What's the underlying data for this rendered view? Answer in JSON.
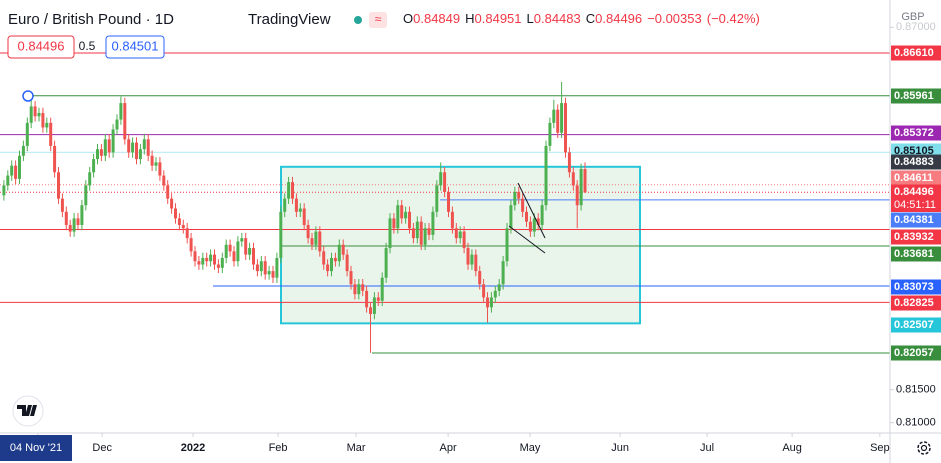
{
  "chart_data": {
    "type": "candlestick",
    "title": "Euro / British Pound · 1D",
    "source": "TradingView",
    "currency": "GBP",
    "ohlc_header": [
      {
        "label": "O",
        "value": 0.84849
      },
      {
        "label": "H",
        "value": 0.84951
      },
      {
        "label": "L",
        "value": 0.84483
      },
      {
        "label": "C",
        "value": 0.84496
      }
    ],
    "change": "−0.00353",
    "change_percent": "(−0.42%)",
    "quote": {
      "sell": 0.84496,
      "spread": 0.5,
      "buy": 0.84501
    },
    "countdown": "04:51:11",
    "up_color": "#4caf50",
    "down_color": "#ef5350",
    "xlim": [
      -1,
      227.2
    ],
    "xticks": [
      {
        "value": 8.7,
        "label": "04 Nov '21"
      },
      {
        "value": 25.2,
        "label": "Dec"
      },
      {
        "value": 48.5,
        "label": "2022"
      },
      {
        "value": 70.3,
        "label": "Feb"
      },
      {
        "value": 90.3,
        "label": "Mar"
      },
      {
        "value": 113.9,
        "label": "Apr"
      },
      {
        "value": 134.9,
        "label": "May"
      },
      {
        "value": 158,
        "label": "Jun"
      },
      {
        "value": 180.3,
        "label": "Jul"
      },
      {
        "value": 202.1,
        "label": "Aug"
      },
      {
        "value": 224.6,
        "label": "Sep"
      }
    ],
    "ylim": [
      0.80843,
      0.87293
    ],
    "yticks": [
      {
        "value": 0.87,
        "label": "0.87000"
      },
      {
        "value": 0.815,
        "label": "0.81500"
      },
      {
        "value": 0.81,
        "label": "0.81000"
      }
    ],
    "levels": [
      {
        "value": 0.8661,
        "label": "0.86610",
        "color": "#f23645"
      },
      {
        "value": 0.85961,
        "label": "0.85961",
        "color": "#388e3c"
      },
      {
        "value": 0.85372,
        "label": "0.85372",
        "color": "#9c27b0"
      },
      {
        "value": 0.85105,
        "label": "0.85105",
        "color": "#80deea"
      },
      {
        "value": 0.84883,
        "label": "0.84883",
        "color": "#363a45"
      },
      {
        "value": 0.84611,
        "label": "0.84611",
        "color": "#f77c80"
      },
      {
        "value": 0.84496,
        "label": "0.84496",
        "color": "#f23645"
      },
      {
        "value": 0.84381,
        "label": "0.84381",
        "color": "#4a7df7"
      },
      {
        "value": 0.83932,
        "label": "0.83932",
        "color": "#f23645"
      },
      {
        "value": 0.83681,
        "label": "0.83681",
        "color": "#388e3c"
      },
      {
        "value": 0.83073,
        "label": "0.83073",
        "color": "#2962ff"
      },
      {
        "value": 0.82825,
        "label": "0.82825",
        "color": "#f23645"
      },
      {
        "value": 0.82507,
        "label": "0.82507",
        "color": "#26c6da"
      },
      {
        "value": 0.82057,
        "label": "0.82057",
        "color": "#388e3c"
      }
    ],
    "ohlc": [
      [
        0.8445,
        0.8468,
        0.8437,
        0.846
      ],
      [
        0.846,
        0.8483,
        0.8452,
        0.8475
      ],
      [
        0.8475,
        0.8498,
        0.8467,
        0.849
      ],
      [
        0.849,
        0.8498,
        0.8462,
        0.847
      ],
      [
        0.847,
        0.8513,
        0.8462,
        0.8505
      ],
      [
        0.8505,
        0.8528,
        0.8497,
        0.852
      ],
      [
        0.852,
        0.8563,
        0.8512,
        0.8555
      ],
      [
        0.8555,
        0.8595,
        0.8547,
        0.858
      ],
      [
        0.858,
        0.8588,
        0.8557,
        0.8565
      ],
      [
        0.8565,
        0.8578,
        0.8557,
        0.857
      ],
      [
        0.857,
        0.8578,
        0.854,
        0.8548
      ],
      [
        0.8548,
        0.8563,
        0.854,
        0.8555
      ],
      [
        0.8555,
        0.8563,
        0.8512,
        0.852
      ],
      [
        0.852,
        0.8528,
        0.8472,
        0.848
      ],
      [
        0.848,
        0.8488,
        0.8432,
        0.844
      ],
      [
        0.844,
        0.8448,
        0.8412,
        0.842
      ],
      [
        0.842,
        0.8428,
        0.8392,
        0.84
      ],
      [
        0.84,
        0.8408,
        0.8382,
        0.839
      ],
      [
        0.839,
        0.8418,
        0.8382,
        0.841
      ],
      [
        0.841,
        0.8418,
        0.8392,
        0.84
      ],
      [
        0.84,
        0.8438,
        0.8392,
        0.843
      ],
      [
        0.843,
        0.8468,
        0.8422,
        0.846
      ],
      [
        0.846,
        0.8488,
        0.8452,
        0.848
      ],
      [
        0.848,
        0.8508,
        0.8472,
        0.85
      ],
      [
        0.85,
        0.8523,
        0.8492,
        0.8515
      ],
      [
        0.8515,
        0.8523,
        0.8497,
        0.8505
      ],
      [
        0.8505,
        0.8538,
        0.8497,
        0.853
      ],
      [
        0.853,
        0.8538,
        0.8502,
        0.851
      ],
      [
        0.851,
        0.8553,
        0.8502,
        0.8545
      ],
      [
        0.8545,
        0.8568,
        0.8537,
        0.856
      ],
      [
        0.856,
        0.8595,
        0.8552,
        0.8585
      ],
      [
        0.8585,
        0.8593,
        0.8522,
        0.853
      ],
      [
        0.853,
        0.8538,
        0.8502,
        0.851
      ],
      [
        0.851,
        0.8533,
        0.8502,
        0.8525
      ],
      [
        0.8525,
        0.8533,
        0.8492,
        0.85
      ],
      [
        0.85,
        0.8523,
        0.8492,
        0.8515
      ],
      [
        0.8515,
        0.8538,
        0.8507,
        0.853
      ],
      [
        0.853,
        0.8538,
        0.8497,
        0.8505
      ],
      [
        0.8505,
        0.8513,
        0.8482,
        0.849
      ],
      [
        0.849,
        0.8503,
        0.8482,
        0.8495
      ],
      [
        0.8495,
        0.8503,
        0.8467,
        0.8475
      ],
      [
        0.8475,
        0.8483,
        0.8452,
        0.846
      ],
      [
        0.846,
        0.8468,
        0.8432,
        0.844
      ],
      [
        0.844,
        0.8448,
        0.8417,
        0.8425
      ],
      [
        0.8425,
        0.8433,
        0.8402,
        0.841
      ],
      [
        0.841,
        0.8418,
        0.8392,
        0.84
      ],
      [
        0.84,
        0.8408,
        0.8387,
        0.8395
      ],
      [
        0.8395,
        0.8403,
        0.8372,
        0.838
      ],
      [
        0.838,
        0.8388,
        0.8352,
        0.836
      ],
      [
        0.836,
        0.8368,
        0.8337,
        0.8345
      ],
      [
        0.8345,
        0.8353,
        0.8332,
        0.834
      ],
      [
        0.834,
        0.8358,
        0.8332,
        0.835
      ],
      [
        0.835,
        0.8358,
        0.8337,
        0.8345
      ],
      [
        0.8345,
        0.8363,
        0.8337,
        0.8355
      ],
      [
        0.8355,
        0.8363,
        0.8332,
        0.834
      ],
      [
        0.834,
        0.8348,
        0.8327,
        0.8335
      ],
      [
        0.8335,
        0.8358,
        0.8327,
        0.835
      ],
      [
        0.835,
        0.8378,
        0.8342,
        0.837
      ],
      [
        0.837,
        0.8378,
        0.8352,
        0.836
      ],
      [
        0.836,
        0.8368,
        0.8337,
        0.8345
      ],
      [
        0.8345,
        0.8383,
        0.8337,
        0.8375
      ],
      [
        0.8375,
        0.8388,
        0.8367,
        0.838
      ],
      [
        0.838,
        0.8388,
        0.8347,
        0.8355
      ],
      [
        0.8355,
        0.8373,
        0.8347,
        0.8365
      ],
      [
        0.8365,
        0.8373,
        0.8332,
        0.834
      ],
      [
        0.834,
        0.8348,
        0.8322,
        0.833
      ],
      [
        0.833,
        0.8353,
        0.8322,
        0.8345
      ],
      [
        0.8345,
        0.8353,
        0.8317,
        0.8325
      ],
      [
        0.8325,
        0.8338,
        0.8317,
        0.833
      ],
      [
        0.833,
        0.8338,
        0.8312,
        0.832
      ],
      [
        0.832,
        0.8358,
        0.8312,
        0.835
      ],
      [
        0.835,
        0.8428,
        0.8342,
        0.842
      ],
      [
        0.842,
        0.8448,
        0.8412,
        0.844
      ],
      [
        0.844,
        0.8473,
        0.8432,
        0.8465
      ],
      [
        0.8465,
        0.8473,
        0.8432,
        0.844
      ],
      [
        0.844,
        0.8448,
        0.8412,
        0.842
      ],
      [
        0.842,
        0.8433,
        0.8412,
        0.8425
      ],
      [
        0.8425,
        0.8433,
        0.8392,
        0.84
      ],
      [
        0.84,
        0.8408,
        0.8372,
        0.838
      ],
      [
        0.838,
        0.8388,
        0.8362,
        0.837
      ],
      [
        0.837,
        0.8398,
        0.8362,
        0.839
      ],
      [
        0.839,
        0.8398,
        0.8352,
        0.836
      ],
      [
        0.836,
        0.8368,
        0.8332,
        0.834
      ],
      [
        0.834,
        0.8348,
        0.8322,
        0.833
      ],
      [
        0.833,
        0.8358,
        0.8322,
        0.835
      ],
      [
        0.835,
        0.8358,
        0.8337,
        0.8345
      ],
      [
        0.8345,
        0.8378,
        0.8337,
        0.837
      ],
      [
        0.837,
        0.8378,
        0.8347,
        0.8355
      ],
      [
        0.8355,
        0.8363,
        0.8322,
        0.833
      ],
      [
        0.833,
        0.8338,
        0.8302,
        0.831
      ],
      [
        0.831,
        0.8318,
        0.8287,
        0.8295
      ],
      [
        0.8295,
        0.8318,
        0.8287,
        0.831
      ],
      [
        0.831,
        0.8318,
        0.8292,
        0.83
      ],
      [
        0.83,
        0.8308,
        0.8267,
        0.8275
      ],
      [
        0.8275,
        0.8283,
        0.8206,
        0.8265
      ],
      [
        0.8265,
        0.8298,
        0.8257,
        0.829
      ],
      [
        0.829,
        0.8298,
        0.8277,
        0.8285
      ],
      [
        0.8285,
        0.8328,
        0.8277,
        0.832
      ],
      [
        0.832,
        0.8373,
        0.8312,
        0.8365
      ],
      [
        0.8365,
        0.8418,
        0.8357,
        0.841
      ],
      [
        0.841,
        0.8418,
        0.8387,
        0.8395
      ],
      [
        0.8395,
        0.8438,
        0.8387,
        0.843
      ],
      [
        0.843,
        0.8438,
        0.8402,
        0.841
      ],
      [
        0.841,
        0.8428,
        0.8402,
        0.842
      ],
      [
        0.842,
        0.8428,
        0.8387,
        0.8395
      ],
      [
        0.8395,
        0.8403,
        0.8372,
        0.838
      ],
      [
        0.838,
        0.8413,
        0.8372,
        0.8405
      ],
      [
        0.8405,
        0.8413,
        0.8362,
        0.837
      ],
      [
        0.837,
        0.8403,
        0.8362,
        0.8395
      ],
      [
        0.8395,
        0.8403,
        0.8377,
        0.8385
      ],
      [
        0.8385,
        0.8428,
        0.8377,
        0.842
      ],
      [
        0.842,
        0.8468,
        0.8412,
        0.846
      ],
      [
        0.846,
        0.8495,
        0.8452,
        0.848
      ],
      [
        0.848,
        0.8488,
        0.8442,
        0.845
      ],
      [
        0.845,
        0.8458,
        0.8412,
        0.842
      ],
      [
        0.842,
        0.8428,
        0.8387,
        0.8395
      ],
      [
        0.8395,
        0.8403,
        0.8372,
        0.838
      ],
      [
        0.838,
        0.8398,
        0.8372,
        0.839
      ],
      [
        0.839,
        0.8398,
        0.8357,
        0.8365
      ],
      [
        0.8365,
        0.8373,
        0.8332,
        0.834
      ],
      [
        0.834,
        0.8363,
        0.8332,
        0.8355
      ],
      [
        0.8355,
        0.8363,
        0.8322,
        0.833
      ],
      [
        0.833,
        0.8338,
        0.8302,
        0.831
      ],
      [
        0.831,
        0.8318,
        0.8282,
        0.829
      ],
      [
        0.829,
        0.8298,
        0.8252,
        0.8275
      ],
      [
        0.8275,
        0.8298,
        0.8267,
        0.829
      ],
      [
        0.829,
        0.8308,
        0.8282,
        0.83
      ],
      [
        0.83,
        0.8318,
        0.8292,
        0.831
      ],
      [
        0.831,
        0.8353,
        0.8302,
        0.8345
      ],
      [
        0.8345,
        0.8403,
        0.8337,
        0.8395
      ],
      [
        0.8395,
        0.8438,
        0.8387,
        0.843
      ],
      [
        0.843,
        0.8458,
        0.8422,
        0.845
      ],
      [
        0.845,
        0.8458,
        0.8432,
        0.844
      ],
      [
        0.844,
        0.8448,
        0.8412,
        0.842
      ],
      [
        0.842,
        0.8428,
        0.8397,
        0.8405
      ],
      [
        0.8405,
        0.8413,
        0.8382,
        0.839
      ],
      [
        0.839,
        0.8418,
        0.8382,
        0.841
      ],
      [
        0.841,
        0.8418,
        0.8392,
        0.84
      ],
      [
        0.84,
        0.8438,
        0.8392,
        0.843
      ],
      [
        0.843,
        0.8528,
        0.8422,
        0.852
      ],
      [
        0.852,
        0.8563,
        0.8512,
        0.8555
      ],
      [
        0.8555,
        0.859,
        0.8547,
        0.8575
      ],
      [
        0.8575,
        0.8583,
        0.8532,
        0.854
      ],
      [
        0.854,
        0.8617,
        0.8532,
        0.8585
      ],
      [
        0.8585,
        0.8593,
        0.8502,
        0.851
      ],
      [
        0.851,
        0.8518,
        0.8472,
        0.848
      ],
      [
        0.848,
        0.8488,
        0.8452,
        0.846
      ],
      [
        0.846,
        0.8468,
        0.8395,
        0.843
      ],
      [
        0.843,
        0.8493,
        0.8422,
        0.8485
      ],
      [
        0.84849,
        0.84951,
        0.84483,
        0.84496
      ]
    ]
  }
}
